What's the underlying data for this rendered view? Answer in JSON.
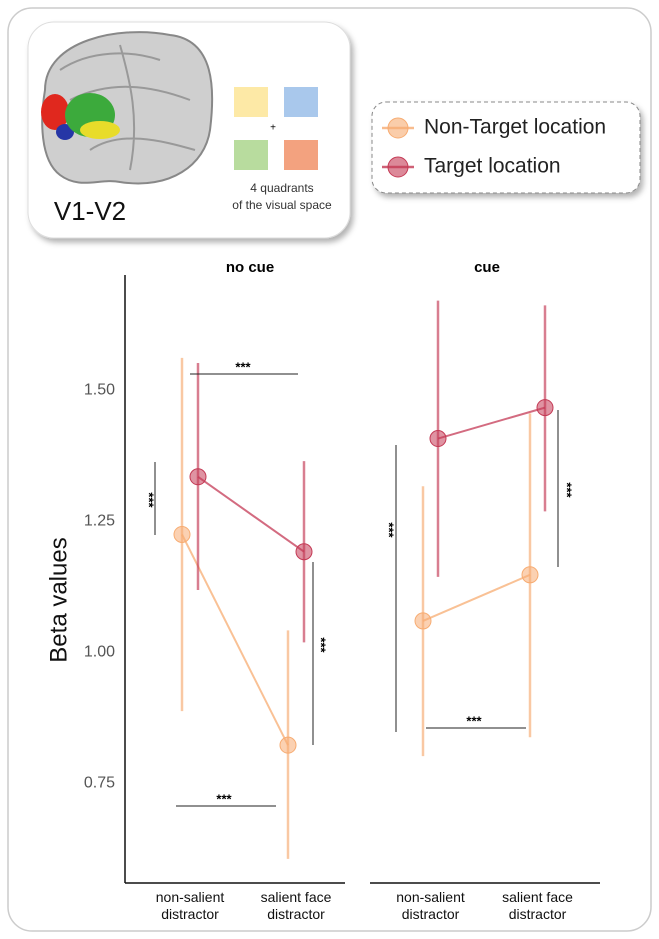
{
  "inset": {
    "label": "V1-V2",
    "plus": "+",
    "caption": [
      "4 quadrants",
      "of the visual space"
    ],
    "quadrant_colors": [
      "#fde9a6",
      "#a9c8ec",
      "#b8dc9e",
      "#f3a27f"
    ]
  },
  "chart_data": [
    {
      "type": "dot-line",
      "title": "no cue",
      "y_label": "Beta values",
      "categories": [
        "non-salient distractor",
        "salient face distractor"
      ],
      "ylim": [
        0.56,
        1.72
      ],
      "yticks": [
        0.75,
        {
          "value": 1,
          "label": "1.00"
        },
        1.25,
        {
          "value": 1.5,
          "label": "1.50"
        }
      ],
      "series": [
        {
          "name": "Non-Target location",
          "color": "#f7ac72",
          "values": [
            1.225,
            0.823
          ],
          "ci_low": [
            0.888,
            0.606
          ],
          "ci_high": [
            1.562,
            1.042
          ]
        },
        {
          "name": "Target location",
          "color": "#c43a55",
          "values": [
            1.335,
            1.192
          ],
          "ci_low": [
            1.119,
            1.019
          ],
          "ci_high": [
            1.552,
            1.365
          ]
        }
      ],
      "annotations": [
        {
          "text": "***"
        },
        {
          "text": "***"
        },
        {
          "text": "***"
        },
        {
          "text": "***"
        }
      ]
    },
    {
      "type": "dot-line",
      "title": "cue",
      "categories": [
        "non-salient distractor",
        "salient face distractor"
      ],
      "ylim": [
        0.56,
        1.72
      ],
      "series": [
        {
          "name": "Non-Target location",
          "color": "#f7ac72",
          "values": [
            1.06,
            1.148
          ],
          "ci_low": [
            0.802,
            0.838
          ],
          "ci_high": [
            1.317,
            1.456
          ]
        },
        {
          "name": "Target location",
          "color": "#c43a55",
          "values": [
            1.408,
            1.467
          ],
          "ci_low": [
            1.144,
            1.269
          ],
          "ci_high": [
            1.671,
            1.662
          ]
        }
      ],
      "annotations": [
        {
          "text": "***"
        },
        {
          "text": "***"
        },
        {
          "text": "***"
        }
      ]
    }
  ]
}
